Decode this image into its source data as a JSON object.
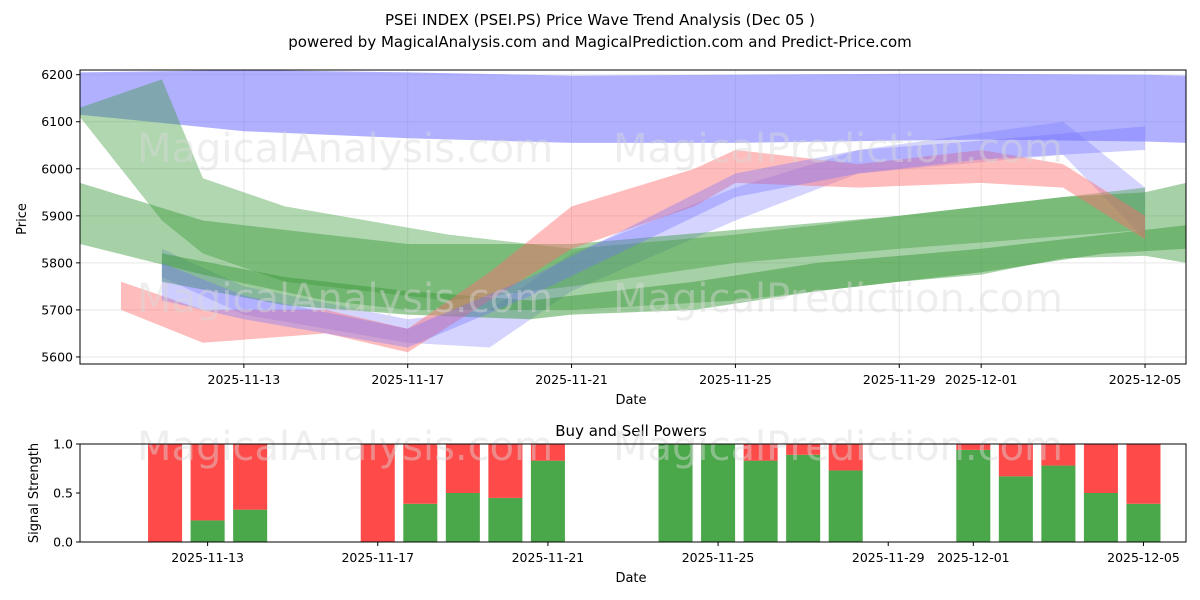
{
  "colors": {
    "blue_band": "#6f6fff",
    "green_band": "#3a9a3a",
    "red_band": "#ff6b6b",
    "buy_bar": "#4aa84a",
    "sell_bar": "#ff4a4a",
    "grid": "#e6e6e6"
  },
  "watermark": {
    "left": "MagicalAnalysis.com",
    "right": "MagicalPrediction.com"
  },
  "chart_data": [
    {
      "type": "area",
      "title": "PSEi INDEX (PSEI.PS) Price Wave Trend Analysis (Dec 05 )",
      "subtitle": "powered by MagicalAnalysis.com and MagicalPrediction.com and Predict-Price.com",
      "xlabel": "Date",
      "ylabel": "Price",
      "x_range": [
        "2025-11-09",
        "2025-12-06"
      ],
      "ylim": [
        5585,
        6210
      ],
      "yticks": [
        5600,
        5700,
        5800,
        5900,
        6000,
        6100,
        6200
      ],
      "xticks": [
        "2025-11-13",
        "2025-11-17",
        "2025-11-21",
        "2025-11-25",
        "2025-11-29",
        "2025-12-01",
        "2025-12-05"
      ],
      "grid": true,
      "series": [
        {
          "name": "blue-wide",
          "color": "blue",
          "opacity": 0.55,
          "x": [
            "2025-11-09",
            "2025-11-13",
            "2025-11-17",
            "2025-11-21",
            "2025-11-25",
            "2025-11-29",
            "2025-12-01",
            "2025-12-05",
            "2025-12-06"
          ],
          "lower": [
            6115,
            6080,
            6065,
            6055,
            6055,
            6060,
            6062,
            6058,
            6055
          ],
          "upper": [
            6205,
            6210,
            6205,
            6198,
            6200,
            6202,
            6202,
            6200,
            6198
          ]
        },
        {
          "name": "blue-narrow",
          "color": "blue",
          "opacity": 0.3,
          "x": [
            "2025-11-11",
            "2025-11-13",
            "2025-11-17",
            "2025-11-19",
            "2025-11-21",
            "2025-11-25",
            "2025-11-28",
            "2025-12-03",
            "2025-12-05"
          ],
          "lower": [
            5770,
            5690,
            5630,
            5620,
            5740,
            5890,
            5990,
            6030,
            5850
          ],
          "upper": [
            5830,
            5750,
            5680,
            5700,
            5820,
            5960,
            6040,
            6100,
            5960
          ]
        },
        {
          "name": "green-upper",
          "color": "green",
          "opacity": 0.4,
          "x": [
            "2025-11-09",
            "2025-11-11",
            "2025-11-12",
            "2025-11-14",
            "2025-11-18",
            "2025-11-21",
            "2025-11-25",
            "2025-11-29",
            "2025-12-02",
            "2025-12-05"
          ],
          "lower": [
            6110,
            5890,
            5820,
            5760,
            5720,
            5750,
            5800,
            5830,
            5850,
            5870
          ],
          "upper": [
            6130,
            6190,
            5980,
            5920,
            5860,
            5830,
            5860,
            5900,
            5930,
            5960
          ]
        },
        {
          "name": "green-band-2",
          "color": "green",
          "opacity": 0.45,
          "x": [
            "2025-11-09",
            "2025-11-12",
            "2025-11-15",
            "2025-11-17",
            "2025-11-21",
            "2025-11-25",
            "2025-11-29",
            "2025-12-01",
            "2025-12-03",
            "2025-12-05",
            "2025-12-06"
          ],
          "lower": [
            5840,
            5775,
            5720,
            5700,
            5700,
            5720,
            5760,
            5775,
            5810,
            5815,
            5800
          ],
          "upper": [
            5970,
            5890,
            5860,
            5840,
            5840,
            5870,
            5900,
            5920,
            5940,
            5950,
            5970
          ]
        },
        {
          "name": "green-band-3",
          "color": "green",
          "opacity": 0.5,
          "x": [
            "2025-11-11",
            "2025-11-14",
            "2025-11-17",
            "2025-11-20",
            "2025-11-21",
            "2025-11-24",
            "2025-11-27",
            "2025-12-01",
            "2025-12-04",
            "2025-12-06"
          ],
          "lower": [
            5760,
            5710,
            5690,
            5680,
            5690,
            5700,
            5740,
            5780,
            5820,
            5830
          ],
          "upper": [
            5820,
            5770,
            5740,
            5720,
            5730,
            5760,
            5800,
            5830,
            5860,
            5880
          ]
        },
        {
          "name": "red-main",
          "color": "red",
          "opacity": 0.45,
          "x": [
            "2025-11-10",
            "2025-11-12",
            "2025-11-15",
            "2025-11-17",
            "2025-11-19",
            "2025-11-21",
            "2025-11-24",
            "2025-11-25",
            "2025-11-28",
            "2025-12-01",
            "2025-12-03",
            "2025-12-05"
          ],
          "lower": [
            5700,
            5630,
            5650,
            5610,
            5720,
            5830,
            5920,
            5970,
            5960,
            5970,
            5960,
            5850
          ],
          "upper": [
            5760,
            5700,
            5700,
            5660,
            5780,
            5920,
            6000,
            6040,
            6010,
            6040,
            6010,
            5900
          ]
        },
        {
          "name": "purple-overlap",
          "color": "blue",
          "opacity": 0.35,
          "x": [
            "2025-11-11",
            "2025-11-13",
            "2025-11-17",
            "2025-11-20",
            "2025-11-25",
            "2025-11-28",
            "2025-12-01",
            "2025-12-05"
          ],
          "lower": [
            5720,
            5680,
            5620,
            5730,
            5940,
            5990,
            6020,
            6040
          ],
          "upper": [
            5800,
            5730,
            5660,
            5770,
            5990,
            6040,
            6060,
            6090
          ]
        }
      ]
    },
    {
      "type": "bar",
      "title": "Buy and Sell Powers",
      "xlabel": "Date",
      "ylabel": "Signal Strength",
      "ylim": [
        0,
        1
      ],
      "yticks": [
        "0.0",
        "0.5",
        "1.0"
      ],
      "xticks": [
        "2025-11-13",
        "2025-11-17",
        "2025-11-21",
        "2025-11-25",
        "2025-11-29",
        "2025-12-01",
        "2025-12-05"
      ],
      "x_range": [
        "2025-11-10",
        "2025-12-06"
      ],
      "categories": [
        "2025-11-12",
        "2025-11-13",
        "2025-11-14",
        "2025-11-17",
        "2025-11-18",
        "2025-11-19",
        "2025-11-20",
        "2025-11-21",
        "2025-11-24",
        "2025-11-25",
        "2025-11-26",
        "2025-11-27",
        "2025-11-28",
        "2025-12-01",
        "2025-12-02",
        "2025-12-03",
        "2025-12-04",
        "2025-12-05"
      ],
      "series": [
        {
          "name": "Buy",
          "values": [
            0.0,
            0.22,
            0.33,
            0.0,
            0.39,
            0.5,
            0.45,
            0.83,
            1.0,
            1.0,
            0.83,
            0.89,
            0.73,
            0.94,
            0.67,
            0.78,
            0.5,
            0.39
          ]
        },
        {
          "name": "Sell",
          "values": [
            1.0,
            0.78,
            0.67,
            1.0,
            0.61,
            0.5,
            0.55,
            0.17,
            0.0,
            0.0,
            0.17,
            0.11,
            0.27,
            0.06,
            0.33,
            0.22,
            0.5,
            0.61
          ]
        }
      ]
    }
  ]
}
